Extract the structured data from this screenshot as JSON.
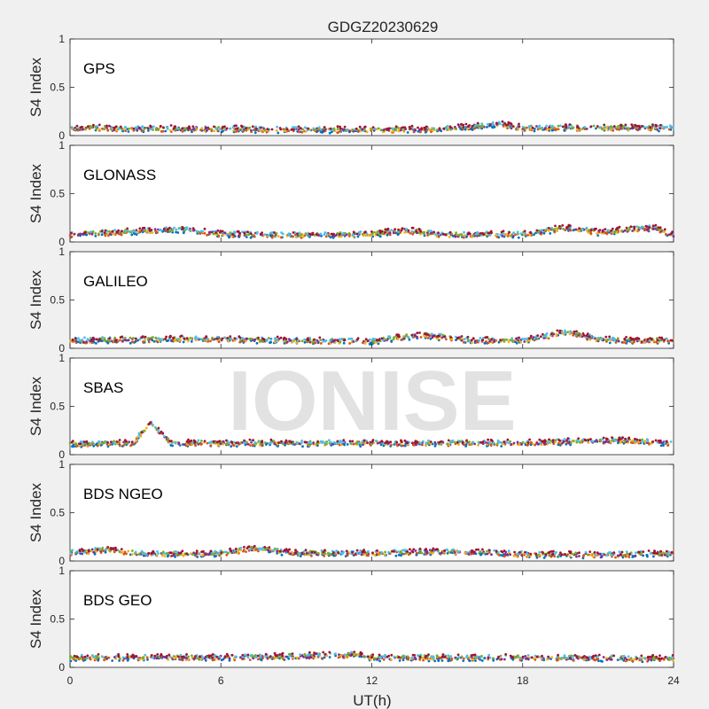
{
  "figure": {
    "title": "GDGZ20230629",
    "watermark": "IONISE",
    "background": "#f0f0f0"
  },
  "chart_data": {
    "type": "scatter",
    "title": "GDGZ20230629",
    "xlabel": "UT(h)",
    "ylabel": "S4 Index",
    "xlim": [
      0,
      24
    ],
    "ylim": [
      0,
      1
    ],
    "xticks": [
      0,
      6,
      12,
      18,
      24
    ],
    "yticks": [
      0,
      0.5,
      1
    ],
    "grid": false,
    "series_colors": [
      "#0072BD",
      "#D95319",
      "#EDB120",
      "#7E2F8E",
      "#77AC30",
      "#4DBEEE",
      "#A2142F"
    ],
    "panels": [
      {
        "name": "GPS",
        "approx_levels": [
          {
            "x": [
              0,
              3,
              6,
              9,
              12,
              15,
              17,
              18,
              21,
              24
            ],
            "y": [
              0.08,
              0.07,
              0.07,
              0.06,
              0.06,
              0.07,
              0.12,
              0.08,
              0.08,
              0.08
            ]
          }
        ]
      },
      {
        "name": "GLONASS",
        "approx_levels": [
          {
            "x": [
              0,
              2,
              4.4,
              6,
              9,
              12,
              13.3,
              15,
              18,
              19.8,
              21,
              23.3,
              24
            ],
            "y": [
              0.08,
              0.1,
              0.13,
              0.08,
              0.07,
              0.08,
              0.12,
              0.07,
              0.08,
              0.15,
              0.1,
              0.15,
              0.07
            ]
          }
        ]
      },
      {
        "name": "GALILEO",
        "approx_levels": [
          {
            "x": [
              0,
              3,
              5,
              9,
              12,
              14,
              16,
              18,
              19.8,
              21,
              24
            ],
            "y": [
              0.08,
              0.09,
              0.1,
              0.08,
              0.07,
              0.14,
              0.08,
              0.08,
              0.17,
              0.09,
              0.08
            ]
          }
        ]
      },
      {
        "name": "SBAS",
        "approx_levels": [
          {
            "x": [
              0,
              2.5,
              3.2,
              4,
              6,
              12,
              18,
              22,
              24
            ],
            "y": [
              0.11,
              0.12,
              0.33,
              0.12,
              0.12,
              0.12,
              0.12,
              0.15,
              0.12
            ]
          }
        ]
      },
      {
        "name": "BDS NGEO",
        "approx_levels": [
          {
            "x": [
              0,
              1.5,
              3,
              6,
              7.3,
              9,
              12,
              15,
              18,
              21,
              24
            ],
            "y": [
              0.08,
              0.12,
              0.07,
              0.08,
              0.13,
              0.08,
              0.08,
              0.1,
              0.07,
              0.06,
              0.08
            ]
          }
        ]
      },
      {
        "name": "BDS GEO",
        "approx_levels": [
          {
            "x": [
              0,
              6,
              11.5,
              12,
              18,
              24
            ],
            "y": [
              0.1,
              0.1,
              0.13,
              0.1,
              0.1,
              0.09
            ]
          }
        ]
      }
    ]
  }
}
